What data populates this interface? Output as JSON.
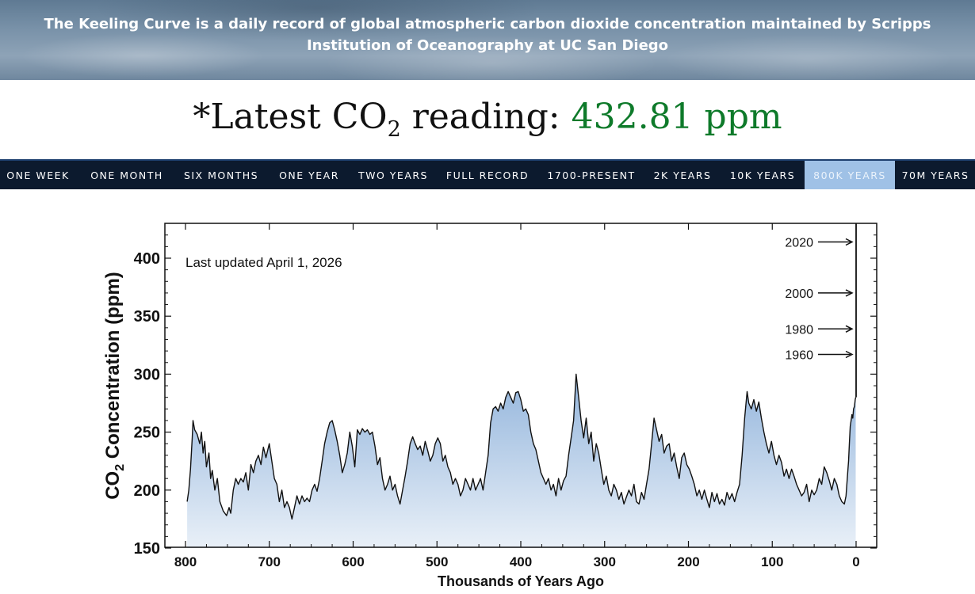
{
  "banner": {
    "text": "The Keeling Curve is a daily record of global atmospheric carbon dioxide concentration maintained by Scripps Institution of Oceanography at UC San Diego"
  },
  "reading": {
    "prefix": "*Latest CO",
    "subscript": "2",
    "middle": " reading: ",
    "value": "432.81 ppm",
    "value_color": "#0e7a2a"
  },
  "nav": {
    "items": [
      "ONE WEEK",
      "ONE MONTH",
      "SIX MONTHS",
      "ONE YEAR",
      "TWO YEARS",
      "FULL RECORD",
      "1700-PRESENT",
      "2K YEARS",
      "10K YEARS",
      "800K YEARS",
      "70M YEARS"
    ],
    "active": "800K YEARS"
  },
  "chart_data": {
    "type": "area",
    "title": "",
    "annotation": "Last updated April 1, 2026",
    "xlabel": "Thousands of Years Ago",
    "ylabel_main": "CO",
    "ylabel_sub": "2",
    "ylabel_rest": " Concentration (ppm)",
    "xlim": [
      800,
      0
    ],
    "ylim": [
      150,
      425
    ],
    "xticks": [
      800,
      700,
      600,
      500,
      400,
      300,
      200,
      100,
      0
    ],
    "yticks": [
      150,
      200,
      250,
      300,
      350,
      400
    ],
    "grid": false,
    "fill_colors": [
      "#93b5dc",
      "#e9f0f8"
    ],
    "line_color": "#111111",
    "year_markers": [
      {
        "label": "2020",
        "ppm": 414
      },
      {
        "label": "2000",
        "ppm": 370
      },
      {
        "label": "1980",
        "ppm": 339
      },
      {
        "label": "1960",
        "ppm": 317
      }
    ],
    "modern_rise_ppm": [
      280,
      432.81
    ],
    "series": [
      {
        "values_kya_ppm": [
          [
            798,
            190
          ],
          [
            796,
            200
          ],
          [
            794,
            218
          ],
          [
            792,
            245
          ],
          [
            791,
            260
          ],
          [
            789,
            252
          ],
          [
            786,
            248
          ],
          [
            783,
            240
          ],
          [
            781,
            250
          ],
          [
            779,
            232
          ],
          [
            777,
            242
          ],
          [
            775,
            220
          ],
          [
            772,
            232
          ],
          [
            770,
            210
          ],
          [
            768,
            217
          ],
          [
            765,
            200
          ],
          [
            762,
            210
          ],
          [
            759,
            190
          ],
          [
            755,
            182
          ],
          [
            751,
            178
          ],
          [
            748,
            185
          ],
          [
            746,
            180
          ],
          [
            743,
            200
          ],
          [
            740,
            210
          ],
          [
            737,
            205
          ],
          [
            734,
            210
          ],
          [
            731,
            207
          ],
          [
            728,
            215
          ],
          [
            725,
            200
          ],
          [
            722,
            222
          ],
          [
            719,
            215
          ],
          [
            716,
            225
          ],
          [
            713,
            230
          ],
          [
            710,
            222
          ],
          [
            707,
            237
          ],
          [
            704,
            228
          ],
          [
            700,
            240
          ],
          [
            697,
            225
          ],
          [
            694,
            210
          ],
          [
            691,
            205
          ],
          [
            688,
            190
          ],
          [
            685,
            200
          ],
          [
            682,
            185
          ],
          [
            679,
            190
          ],
          [
            676,
            185
          ],
          [
            673,
            175
          ],
          [
            670,
            185
          ],
          [
            667,
            195
          ],
          [
            664,
            188
          ],
          [
            661,
            195
          ],
          [
            658,
            190
          ],
          [
            655,
            193
          ],
          [
            652,
            190
          ],
          [
            649,
            200
          ],
          [
            646,
            205
          ],
          [
            643,
            199
          ],
          [
            640,
            210
          ],
          [
            637,
            225
          ],
          [
            634,
            240
          ],
          [
            631,
            250
          ],
          [
            628,
            258
          ],
          [
            625,
            260
          ],
          [
            622,
            252
          ],
          [
            619,
            242
          ],
          [
            616,
            230
          ],
          [
            613,
            215
          ],
          [
            610,
            222
          ],
          [
            607,
            232
          ],
          [
            604,
            250
          ],
          [
            601,
            238
          ],
          [
            598,
            220
          ],
          [
            595,
            252
          ],
          [
            592,
            248
          ],
          [
            589,
            253
          ],
          [
            586,
            250
          ],
          [
            583,
            252
          ],
          [
            580,
            248
          ],
          [
            577,
            250
          ],
          [
            574,
            238
          ],
          [
            571,
            222
          ],
          [
            568,
            228
          ],
          [
            565,
            210
          ],
          [
            562,
            200
          ],
          [
            559,
            205
          ],
          [
            556,
            212
          ],
          [
            553,
            200
          ],
          [
            550,
            205
          ],
          [
            547,
            195
          ],
          [
            544,
            188
          ],
          [
            541,
            200
          ],
          [
            538,
            212
          ],
          [
            535,
            225
          ],
          [
            532,
            240
          ],
          [
            529,
            246
          ],
          [
            526,
            240
          ],
          [
            523,
            235
          ],
          [
            520,
            238
          ],
          [
            517,
            230
          ],
          [
            514,
            242
          ],
          [
            511,
            234
          ],
          [
            508,
            225
          ],
          [
            505,
            230
          ],
          [
            502,
            240
          ],
          [
            499,
            245
          ],
          [
            496,
            240
          ],
          [
            493,
            225
          ],
          [
            490,
            230
          ],
          [
            487,
            220
          ],
          [
            484,
            215
          ],
          [
            481,
            205
          ],
          [
            478,
            210
          ],
          [
            475,
            205
          ],
          [
            472,
            195
          ],
          [
            469,
            200
          ],
          [
            466,
            210
          ],
          [
            463,
            205
          ],
          [
            460,
            200
          ],
          [
            457,
            210
          ],
          [
            454,
            200
          ],
          [
            451,
            205
          ],
          [
            448,
            210
          ],
          [
            445,
            200
          ],
          [
            442,
            215
          ],
          [
            439,
            230
          ],
          [
            436,
            258
          ],
          [
            433,
            270
          ],
          [
            430,
            272
          ],
          [
            427,
            268
          ],
          [
            424,
            275
          ],
          [
            421,
            270
          ],
          [
            418,
            280
          ],
          [
            415,
            285
          ],
          [
            412,
            280
          ],
          [
            409,
            275
          ],
          [
            406,
            284
          ],
          [
            403,
            285
          ],
          [
            400,
            278
          ],
          [
            397,
            268
          ],
          [
            394,
            270
          ],
          [
            391,
            265
          ],
          [
            388,
            250
          ],
          [
            385,
            240
          ],
          [
            382,
            235
          ],
          [
            379,
            225
          ],
          [
            376,
            215
          ],
          [
            373,
            210
          ],
          [
            370,
            205
          ],
          [
            367,
            210
          ],
          [
            364,
            200
          ],
          [
            361,
            205
          ],
          [
            358,
            195
          ],
          [
            355,
            210
          ],
          [
            352,
            200
          ],
          [
            349,
            208
          ],
          [
            346,
            212
          ],
          [
            343,
            230
          ],
          [
            340,
            245
          ],
          [
            337,
            260
          ],
          [
            334,
            300
          ],
          [
            331,
            280
          ],
          [
            328,
            260
          ],
          [
            325,
            245
          ],
          [
            322,
            262
          ],
          [
            319,
            240
          ],
          [
            316,
            250
          ],
          [
            313,
            225
          ],
          [
            310,
            240
          ],
          [
            307,
            232
          ],
          [
            304,
            218
          ],
          [
            301,
            205
          ],
          [
            298,
            212
          ],
          [
            295,
            200
          ],
          [
            292,
            195
          ],
          [
            289,
            205
          ],
          [
            286,
            200
          ],
          [
            283,
            192
          ],
          [
            280,
            198
          ],
          [
            277,
            188
          ],
          [
            274,
            194
          ],
          [
            271,
            200
          ],
          [
            268,
            195
          ],
          [
            265,
            205
          ],
          [
            262,
            190
          ],
          [
            259,
            188
          ],
          [
            256,
            198
          ],
          [
            253,
            192
          ],
          [
            250,
            205
          ],
          [
            247,
            218
          ],
          [
            244,
            240
          ],
          [
            241,
            262
          ],
          [
            238,
            252
          ],
          [
            235,
            242
          ],
          [
            232,
            248
          ],
          [
            229,
            232
          ],
          [
            226,
            238
          ],
          [
            223,
            240
          ],
          [
            220,
            225
          ],
          [
            217,
            232
          ],
          [
            214,
            220
          ],
          [
            211,
            210
          ],
          [
            208,
            228
          ],
          [
            205,
            232
          ],
          [
            202,
            222
          ],
          [
            199,
            218
          ],
          [
            196,
            212
          ],
          [
            193,
            205
          ],
          [
            190,
            195
          ],
          [
            187,
            200
          ],
          [
            184,
            192
          ],
          [
            181,
            200
          ],
          [
            178,
            192
          ],
          [
            175,
            185
          ],
          [
            172,
            198
          ],
          [
            169,
            190
          ],
          [
            166,
            197
          ],
          [
            163,
            188
          ],
          [
            160,
            192
          ],
          [
            157,
            187
          ],
          [
            154,
            198
          ],
          [
            151,
            192
          ],
          [
            148,
            197
          ],
          [
            145,
            190
          ],
          [
            142,
            198
          ],
          [
            139,
            205
          ],
          [
            136,
            230
          ],
          [
            133,
            262
          ],
          [
            130,
            285
          ],
          [
            128,
            275
          ],
          [
            125,
            270
          ],
          [
            122,
            278
          ],
          [
            119,
            268
          ],
          [
            116,
            276
          ],
          [
            113,
            262
          ],
          [
            110,
            250
          ],
          [
            107,
            240
          ],
          [
            104,
            232
          ],
          [
            101,
            242
          ],
          [
            98,
            230
          ],
          [
            95,
            222
          ],
          [
            92,
            230
          ],
          [
            89,
            224
          ],
          [
            86,
            212
          ],
          [
            83,
            218
          ],
          [
            80,
            210
          ],
          [
            77,
            218
          ],
          [
            74,
            212
          ],
          [
            71,
            205
          ],
          [
            68,
            200
          ],
          [
            65,
            195
          ],
          [
            62,
            198
          ],
          [
            59,
            205
          ],
          [
            56,
            190
          ],
          [
            53,
            200
          ],
          [
            50,
            196
          ],
          [
            47,
            200
          ],
          [
            44,
            210
          ],
          [
            41,
            205
          ],
          [
            38,
            220
          ],
          [
            35,
            215
          ],
          [
            32,
            208
          ],
          [
            29,
            200
          ],
          [
            26,
            210
          ],
          [
            23,
            205
          ],
          [
            20,
            195
          ],
          [
            17,
            190
          ],
          [
            14,
            188
          ],
          [
            12,
            195
          ],
          [
            10,
            215
          ],
          [
            9,
            225
          ],
          [
            8,
            240
          ],
          [
            7,
            255
          ],
          [
            6,
            260
          ],
          [
            5,
            265
          ],
          [
            4,
            262
          ],
          [
            3,
            270
          ],
          [
            2,
            272
          ],
          [
            1,
            278
          ],
          [
            0.5,
            280
          ]
        ]
      }
    ]
  }
}
